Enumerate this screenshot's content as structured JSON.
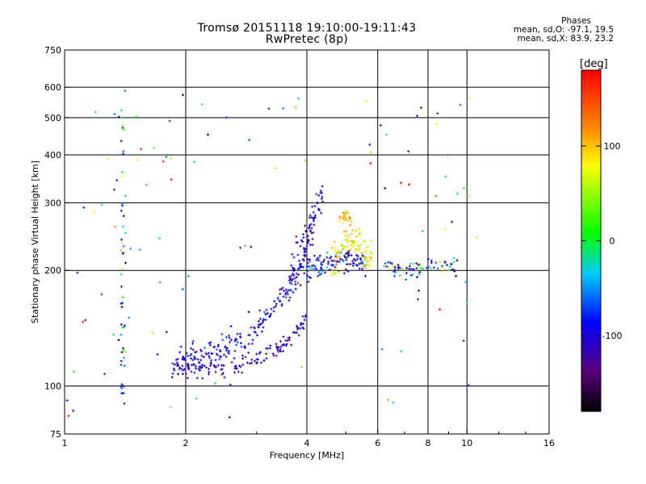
{
  "chart_data": {
    "type": "scatter",
    "title": "Tromsø 20151118 19:10:00-19:11:43",
    "subtitle": "RwPretec (8p)",
    "stats": {
      "heading": "Phases",
      "line1": "mean, sd,O: -97.1, 19.5",
      "line2": "mean, sd,X: 83.9, 23.2"
    },
    "xlabel": "Frequency [MHz]",
    "ylabel": "Stationary phase Virtual Height [km]",
    "x_scale": "log",
    "y_scale": "log",
    "xlim": [
      1,
      16
    ],
    "ylim": [
      75,
      750
    ],
    "x_ticks": [
      1,
      2,
      4,
      6,
      8,
      10,
      16
    ],
    "y_ticks": [
      75,
      100,
      200,
      300,
      400,
      500,
      600,
      750
    ],
    "x_grid": [
      1,
      2,
      4,
      6,
      8,
      10,
      16
    ],
    "y_grid": [
      100,
      200,
      300,
      400,
      500,
      600
    ],
    "grid": true,
    "colorbar": {
      "label": "[deg]",
      "range": [
        -180,
        180
      ],
      "ticks": [
        100,
        0,
        -100
      ]
    },
    "point_groups": [
      {
        "name": "o-trace-lower",
        "f": [
          1.85,
          4.0
        ],
        "h_curve": [
          [
            1.85,
            112
          ],
          [
            2.0,
            110
          ],
          [
            2.5,
            112
          ],
          [
            3.0,
            118
          ],
          [
            3.5,
            128
          ],
          [
            3.8,
            140
          ],
          [
            4.0,
            150
          ]
        ],
        "spread": 6,
        "n": 140,
        "phase": [
          -110,
          15
        ]
      },
      {
        "name": "o-trace-upper",
        "f": [
          1.9,
          4.05
        ],
        "h_curve": [
          [
            1.9,
            116
          ],
          [
            2.3,
            120
          ],
          [
            2.7,
            130
          ],
          [
            3.0,
            140
          ],
          [
            3.3,
            160
          ],
          [
            3.6,
            180
          ],
          [
            3.9,
            210
          ],
          [
            4.05,
            250
          ]
        ],
        "spread": 10,
        "n": 190,
        "phase": [
          -100,
          20
        ]
      },
      {
        "name": "o-spread-top",
        "f": [
          3.6,
          4.4
        ],
        "h_curve": [
          [
            3.6,
            190
          ],
          [
            3.9,
            220
          ],
          [
            4.1,
            260
          ],
          [
            4.2,
            300
          ]
        ],
        "spread": 35,
        "n": 90,
        "phase": [
          -110,
          15
        ]
      },
      {
        "name": "mid-cloud",
        "f": [
          4.0,
          5.6
        ],
        "h_curve": [
          [
            4.0,
            200
          ],
          [
            4.5,
            210
          ],
          [
            5.0,
            215
          ],
          [
            5.6,
            210
          ]
        ],
        "spread": 14,
        "n": 110,
        "phase": [
          -90,
          30
        ]
      },
      {
        "name": "x-trace",
        "f": [
          4.6,
          5.8
        ],
        "h_curve": [
          [
            4.6,
            205
          ],
          [
            4.9,
            230
          ],
          [
            5.2,
            245
          ],
          [
            5.6,
            220
          ]
        ],
        "spread": 25,
        "n": 90,
        "phase": [
          85,
          25
        ]
      },
      {
        "name": "x-upper",
        "f": [
          4.8,
          5.2
        ],
        "h_curve": [
          [
            4.8,
            270
          ],
          [
            5.0,
            280
          ],
          [
            5.2,
            265
          ]
        ],
        "spread": 10,
        "n": 25,
        "phase": [
          95,
          20
        ]
      },
      {
        "name": "high-f-cloud",
        "f": [
          6.2,
          9.5
        ],
        "h_curve": [
          [
            6.2,
            205
          ],
          [
            7.0,
            200
          ],
          [
            8.0,
            205
          ],
          [
            9.0,
            210
          ],
          [
            9.5,
            200
          ]
        ],
        "spread": 10,
        "n": 70,
        "phase": [
          -80,
          60
        ]
      },
      {
        "name": "column-1.4",
        "f": [
          1.38,
          1.42
        ],
        "h_curve": [
          [
            1.38,
            90
          ],
          [
            1.42,
            600
          ]
        ],
        "spread": 200,
        "n": 55,
        "phase": [
          -60,
          60
        ]
      },
      {
        "name": "scatter-low",
        "f": [
          1.0,
          4.0
        ],
        "h_curve": [
          [
            1.0,
            80
          ],
          [
            4.0,
            600
          ]
        ],
        "spread": 250,
        "n": 70,
        "phase": [
          0,
          120
        ]
      },
      {
        "name": "scatter-high",
        "f": [
          5.5,
          11.5
        ],
        "h_curve": [
          [
            5.5,
            90
          ],
          [
            11.5,
            600
          ]
        ],
        "spread": 250,
        "n": 40,
        "phase": [
          0,
          120
        ]
      }
    ]
  }
}
